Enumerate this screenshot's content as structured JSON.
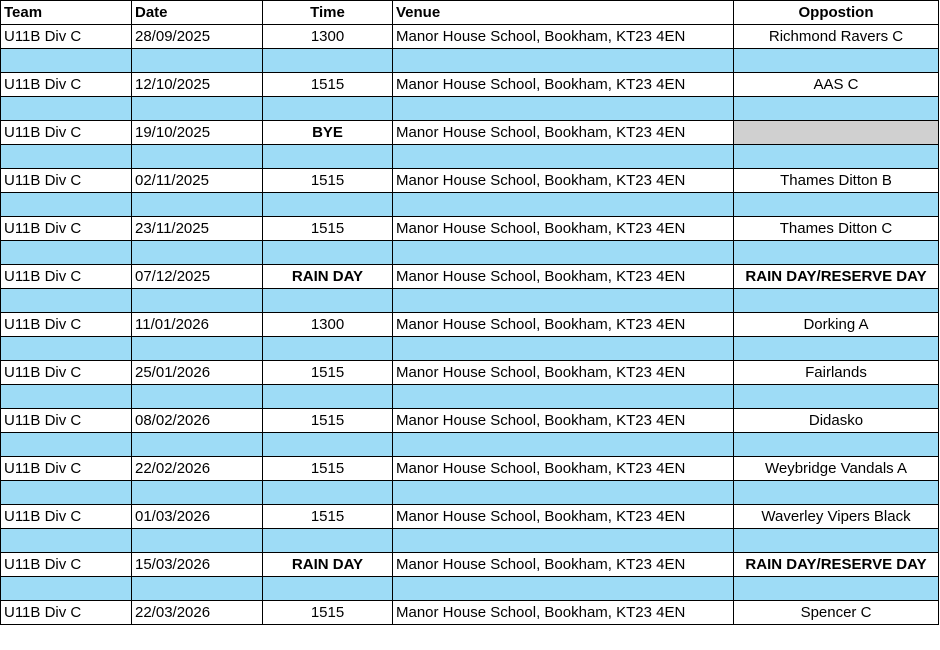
{
  "table": {
    "header": [
      "Team",
      "Date",
      "Time",
      "Venue",
      "Oppostion"
    ],
    "rows": [
      [
        "U11B Div C",
        "28/09/2025",
        "1300",
        "Manor House School, Bookham, KT23 4EN",
        "Richmond Ravers C"
      ],
      [
        "U11B Div C",
        "12/10/2025",
        "1515",
        "Manor House School, Bookham, KT23 4EN",
        "AAS C"
      ],
      [
        "U11B Div C",
        "19/10/2025",
        "BYE",
        "Manor House School, Bookham, KT23 4EN",
        null
      ],
      [
        "U11B Div C",
        "02/11/2025",
        "1515",
        "Manor House School, Bookham, KT23 4EN",
        "Thames Ditton B"
      ],
      [
        "U11B Div C",
        "23/11/2025",
        "1515",
        "Manor House School, Bookham, KT23 4EN",
        "Thames Ditton C"
      ],
      [
        "U11B Div C",
        "07/12/2025",
        "RAIN DAY",
        "Manor House School, Bookham, KT23 4EN",
        "RAIN DAY/RESERVE DAY"
      ],
      [
        "U11B Div C",
        "11/01/2026",
        "1300",
        "Manor House School, Bookham, KT23 4EN",
        "Dorking A"
      ],
      [
        "U11B Div C",
        "25/01/2026",
        "1515",
        "Manor House School, Bookham, KT23 4EN",
        "Fairlands"
      ],
      [
        "U11B Div C",
        "08/02/2026",
        "1515",
        "Manor House School, Bookham, KT23 4EN",
        "Didasko"
      ],
      [
        "U11B Div C",
        "22/02/2026",
        "1515",
        "Manor House School, Bookham, KT23 4EN",
        "Weybridge Vandals A"
      ],
      [
        "U11B Div C",
        "01/03/2026",
        "1515",
        "Manor House School, Bookham, KT23 4EN",
        "Waverley Vipers Black"
      ],
      [
        "U11B Div C",
        "15/03/2026",
        "RAIN DAY",
        "Manor House School, Bookham, KT23 4EN",
        "RAIN DAY/RESERVE DAY"
      ],
      [
        "U11B Div C",
        "22/03/2026",
        "1515",
        "Manor House School, Bookham, KT23 4EN",
        "Spencer C"
      ]
    ],
    "bold_cells": [
      [
        2,
        2
      ],
      [
        5,
        2
      ],
      [
        5,
        4
      ],
      [
        11,
        2
      ],
      [
        11,
        4
      ]
    ]
  }
}
